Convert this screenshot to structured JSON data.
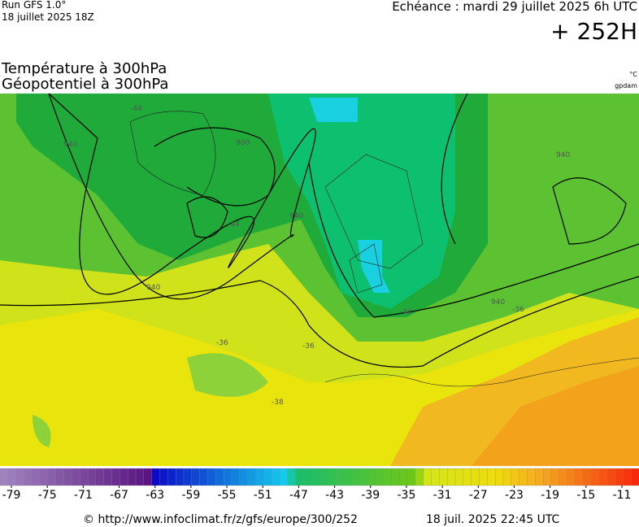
{
  "header": {
    "run": "Run GFS 1.0°",
    "date": "18 juillet 2025 18Z",
    "echeance": "Echéance : mardi 29 juillet 2025 6h UTC",
    "lead": "+ 252H"
  },
  "titles": {
    "line1": "Température à 300hPa",
    "line2": "Géopotentiel à 300hPa",
    "unit1": "°C",
    "unit2": "gpdam"
  },
  "contour_labels": [
    "940",
    "900",
    "940",
    "940",
    "940",
    "940",
    "-44",
    "-44",
    "-44",
    "-36",
    "-36",
    "-36",
    "-38"
  ],
  "colorbar": {
    "ticks": [
      -79,
      -75,
      -71,
      -67,
      -63,
      -59,
      -55,
      -51,
      -47,
      -43,
      -39,
      -35,
      -31,
      -27,
      -23,
      -19,
      -15,
      -11
    ]
  },
  "footer": {
    "url": "© http://www.infoclimat.fr/z/gfs/europe/300/252",
    "time": "18 juil. 2025 22:45 UTC"
  }
}
